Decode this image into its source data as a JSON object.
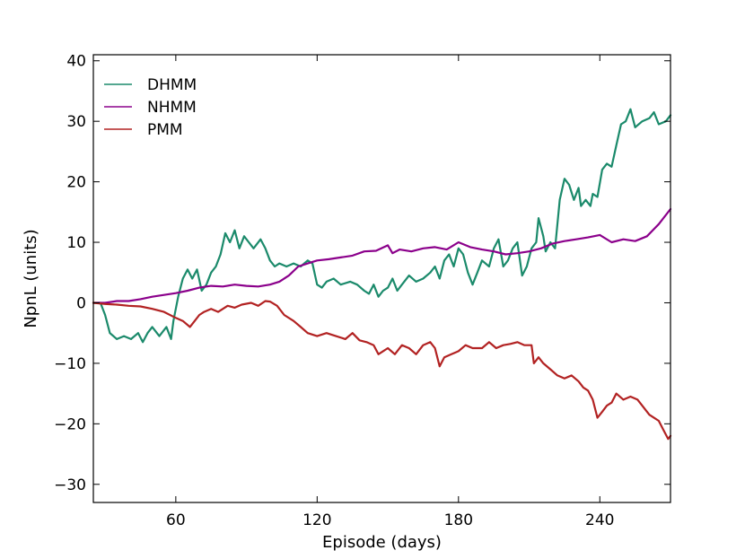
{
  "chart_data": {
    "type": "line",
    "xlabel": "Episode (days)",
    "ylabel": "NpnL (units)",
    "xlim": [
      25,
      270
    ],
    "ylim": [
      -33,
      41
    ],
    "xticks": [
      60,
      120,
      180,
      240
    ],
    "xtick_labels": [
      "60",
      "120",
      "180",
      "240"
    ],
    "yticks": [
      -30,
      -20,
      -10,
      0,
      10,
      20,
      30,
      40
    ],
    "ytick_labels": [
      "−30",
      "−20",
      "−10",
      "0",
      "10",
      "20",
      "30",
      "40"
    ],
    "grid": false,
    "legend_position": "top-left",
    "series": [
      {
        "name": "DHMM",
        "color": "#1b8a6b",
        "points": [
          [
            25,
            0
          ],
          [
            28,
            0
          ],
          [
            30,
            -2
          ],
          [
            32,
            -5
          ],
          [
            35,
            -6
          ],
          [
            38,
            -5.5
          ],
          [
            41,
            -6
          ],
          [
            44,
            -5
          ],
          [
            46,
            -6.5
          ],
          [
            48,
            -5
          ],
          [
            50,
            -4
          ],
          [
            53,
            -5.5
          ],
          [
            56,
            -4
          ],
          [
            58,
            -6
          ],
          [
            59,
            -3
          ],
          [
            61,
            1
          ],
          [
            63,
            4
          ],
          [
            65,
            5.5
          ],
          [
            67,
            4
          ],
          [
            69,
            5.5
          ],
          [
            71,
            2
          ],
          [
            73,
            3
          ],
          [
            75,
            5
          ],
          [
            77,
            6
          ],
          [
            79,
            8
          ],
          [
            81,
            11.5
          ],
          [
            83,
            10
          ],
          [
            85,
            12
          ],
          [
            87,
            9
          ],
          [
            89,
            11
          ],
          [
            91,
            10
          ],
          [
            93,
            9
          ],
          [
            96,
            10.5
          ],
          [
            98,
            9
          ],
          [
            100,
            7
          ],
          [
            102,
            6
          ],
          [
            104,
            6.5
          ],
          [
            107,
            6
          ],
          [
            110,
            6.5
          ],
          [
            113,
            6
          ],
          [
            116,
            7
          ],
          [
            118,
            6.5
          ],
          [
            120,
            3
          ],
          [
            122,
            2.5
          ],
          [
            124,
            3.5
          ],
          [
            127,
            4
          ],
          [
            130,
            3
          ],
          [
            134,
            3.5
          ],
          [
            137,
            3
          ],
          [
            140,
            2
          ],
          [
            142,
            1.5
          ],
          [
            144,
            3
          ],
          [
            146,
            1
          ],
          [
            148,
            2
          ],
          [
            150,
            2.5
          ],
          [
            152,
            4
          ],
          [
            154,
            2
          ],
          [
            156,
            3
          ],
          [
            159,
            4.5
          ],
          [
            162,
            3.5
          ],
          [
            165,
            4
          ],
          [
            168,
            5
          ],
          [
            170,
            6
          ],
          [
            172,
            4
          ],
          [
            174,
            7
          ],
          [
            176,
            8
          ],
          [
            178,
            6
          ],
          [
            180,
            9
          ],
          [
            182,
            8
          ],
          [
            184,
            5
          ],
          [
            186,
            3
          ],
          [
            188,
            5
          ],
          [
            190,
            7
          ],
          [
            193,
            6
          ],
          [
            195,
            9
          ],
          [
            197,
            10.5
          ],
          [
            199,
            6
          ],
          [
            201,
            7
          ],
          [
            203,
            9
          ],
          [
            205,
            10
          ],
          [
            207,
            4.5
          ],
          [
            209,
            6
          ],
          [
            211,
            9
          ],
          [
            213,
            10
          ],
          [
            214,
            14
          ],
          [
            216,
            11
          ],
          [
            217,
            8.5
          ],
          [
            219,
            10
          ],
          [
            221,
            9
          ],
          [
            223,
            17
          ],
          [
            225,
            20.5
          ],
          [
            227,
            19.5
          ],
          [
            229,
            17
          ],
          [
            231,
            19
          ],
          [
            232,
            16
          ],
          [
            234,
            17
          ],
          [
            236,
            16
          ],
          [
            237,
            18
          ],
          [
            239,
            17.5
          ],
          [
            241,
            22
          ],
          [
            243,
            23
          ],
          [
            245,
            22.5
          ],
          [
            247,
            26
          ],
          [
            249,
            29.5
          ],
          [
            251,
            30
          ],
          [
            253,
            32
          ],
          [
            255,
            29
          ],
          [
            258,
            30
          ],
          [
            261,
            30.5
          ],
          [
            263,
            31.5
          ],
          [
            265,
            29.5
          ],
          [
            268,
            30
          ],
          [
            270,
            31
          ]
        ]
      },
      {
        "name": "NHMM",
        "color": "#8b008b",
        "points": [
          [
            25,
            0
          ],
          [
            30,
            0
          ],
          [
            35,
            0.3
          ],
          [
            40,
            0.3
          ],
          [
            45,
            0.6
          ],
          [
            50,
            1
          ],
          [
            55,
            1.3
          ],
          [
            60,
            1.6
          ],
          [
            65,
            2
          ],
          [
            70,
            2.5
          ],
          [
            75,
            2.8
          ],
          [
            80,
            2.7
          ],
          [
            85,
            3
          ],
          [
            90,
            2.8
          ],
          [
            95,
            2.7
          ],
          [
            100,
            3
          ],
          [
            104,
            3.5
          ],
          [
            108,
            4.5
          ],
          [
            112,
            6
          ],
          [
            116,
            6.5
          ],
          [
            120,
            7
          ],
          [
            125,
            7.2
          ],
          [
            130,
            7.5
          ],
          [
            135,
            7.8
          ],
          [
            140,
            8.5
          ],
          [
            145,
            8.6
          ],
          [
            150,
            9.5
          ],
          [
            152,
            8.2
          ],
          [
            155,
            8.8
          ],
          [
            160,
            8.5
          ],
          [
            165,
            9
          ],
          [
            170,
            9.2
          ],
          [
            175,
            8.8
          ],
          [
            180,
            10
          ],
          [
            185,
            9.2
          ],
          [
            190,
            8.8
          ],
          [
            195,
            8.5
          ],
          [
            200,
            8
          ],
          [
            205,
            8.2
          ],
          [
            210,
            8.5
          ],
          [
            215,
            9
          ],
          [
            220,
            9.8
          ],
          [
            225,
            10.2
          ],
          [
            230,
            10.5
          ],
          [
            235,
            10.8
          ],
          [
            240,
            11.2
          ],
          [
            245,
            10
          ],
          [
            250,
            10.5
          ],
          [
            255,
            10.2
          ],
          [
            260,
            11
          ],
          [
            265,
            13
          ],
          [
            270,
            15.5
          ]
        ]
      },
      {
        "name": "PMM",
        "color": "#b22222",
        "points": [
          [
            25,
            0
          ],
          [
            30,
            -0.2
          ],
          [
            35,
            -0.3
          ],
          [
            40,
            -0.5
          ],
          [
            45,
            -0.6
          ],
          [
            50,
            -1
          ],
          [
            55,
            -1.5
          ],
          [
            60,
            -2.5
          ],
          [
            63,
            -3
          ],
          [
            66,
            -4
          ],
          [
            68,
            -3
          ],
          [
            70,
            -2
          ],
          [
            72,
            -1.5
          ],
          [
            75,
            -1
          ],
          [
            78,
            -1.5
          ],
          [
            82,
            -0.5
          ],
          [
            85,
            -0.8
          ],
          [
            88,
            -0.3
          ],
          [
            92,
            0
          ],
          [
            95,
            -0.5
          ],
          [
            98,
            0.3
          ],
          [
            100,
            0.2
          ],
          [
            103,
            -0.5
          ],
          [
            106,
            -2
          ],
          [
            110,
            -3
          ],
          [
            113,
            -4
          ],
          [
            116,
            -5
          ],
          [
            120,
            -5.5
          ],
          [
            124,
            -5
          ],
          [
            128,
            -5.5
          ],
          [
            132,
            -6
          ],
          [
            135,
            -5
          ],
          [
            138,
            -6.2
          ],
          [
            141,
            -6.5
          ],
          [
            144,
            -7
          ],
          [
            146,
            -8.5
          ],
          [
            148,
            -8
          ],
          [
            150,
            -7.5
          ],
          [
            153,
            -8.5
          ],
          [
            156,
            -7
          ],
          [
            159,
            -7.5
          ],
          [
            162,
            -8.5
          ],
          [
            165,
            -7
          ],
          [
            168,
            -6.5
          ],
          [
            170,
            -7.5
          ],
          [
            172,
            -10.5
          ],
          [
            174,
            -9
          ],
          [
            177,
            -8.5
          ],
          [
            180,
            -8
          ],
          [
            183,
            -7
          ],
          [
            186,
            -7.5
          ],
          [
            190,
            -7.5
          ],
          [
            193,
            -6.5
          ],
          [
            196,
            -7.5
          ],
          [
            199,
            -7
          ],
          [
            202,
            -6.8
          ],
          [
            205,
            -6.5
          ],
          [
            208,
            -7
          ],
          [
            211,
            -7
          ],
          [
            212,
            -10
          ],
          [
            214,
            -9
          ],
          [
            216,
            -10
          ],
          [
            219,
            -11
          ],
          [
            222,
            -12
          ],
          [
            225,
            -12.5
          ],
          [
            228,
            -12
          ],
          [
            231,
            -13
          ],
          [
            233,
            -14
          ],
          [
            235,
            -14.5
          ],
          [
            237,
            -16
          ],
          [
            239,
            -19
          ],
          [
            241,
            -18
          ],
          [
            243,
            -17
          ],
          [
            245,
            -16.5
          ],
          [
            247,
            -15
          ],
          [
            250,
            -16
          ],
          [
            253,
            -15.5
          ],
          [
            256,
            -16
          ],
          [
            258,
            -17
          ],
          [
            261,
            -18.5
          ],
          [
            263,
            -19
          ],
          [
            265,
            -19.5
          ],
          [
            267,
            -21
          ],
          [
            269,
            -22.5
          ],
          [
            270,
            -22
          ]
        ]
      }
    ]
  }
}
